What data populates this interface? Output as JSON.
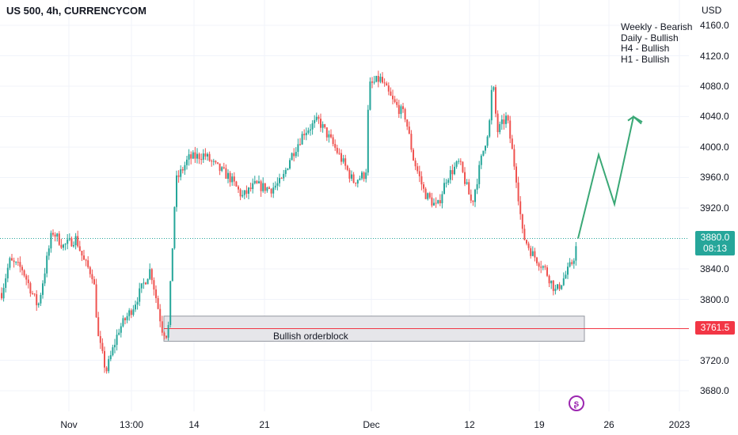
{
  "header": {
    "symbol_line": "US 500, 4h, CURRENCYCOM",
    "currency": "USD"
  },
  "notes": [
    "Weekly - Bearish",
    "Daily - Bullish",
    "H4 - Bullish",
    "H1 - Bullish"
  ],
  "annotations": {
    "orderblock_label": "Bullish orderblock"
  },
  "price_tags": {
    "current_price": "3880.0",
    "countdown": "08:13",
    "level_price": "3761.5"
  },
  "colors": {
    "up": "#26a69a",
    "down": "#ef5350",
    "level_line": "#f23645",
    "current_tag": "#26a69a",
    "orderblock_fill": "#e6e6ea",
    "orderblock_border": "#9598a1",
    "projection": "#3aa876",
    "grid": "#f0f3fa"
  },
  "chart_data": {
    "type": "candlestick",
    "y_axis": {
      "ticks": [
        "4160.0",
        "4120.0",
        "4080.0",
        "4040.0",
        "4000.0",
        "3960.0",
        "3920.0",
        "3840.0",
        "3800.0",
        "3720.0",
        "3680.0"
      ],
      "range": [
        3652,
        4180
      ]
    },
    "x_axis": {
      "ticks": [
        "Nov",
        "13:00",
        "14",
        "21",
        "Dec",
        "12",
        "19",
        "26",
        "2023"
      ]
    },
    "levels": {
      "current_price": 3880.0,
      "support": 3761.5
    },
    "orderblock": {
      "label": "Bullish orderblock",
      "low": 3745,
      "high": 3778
    },
    "projection_path": [
      3880,
      3990,
      3925,
      4040,
      4033
    ],
    "price_path_anchors": [
      [
        0,
        3800
      ],
      [
        12,
        3850
      ],
      [
        28,
        3840
      ],
      [
        48,
        3790
      ],
      [
        66,
        3890
      ],
      [
        80,
        3870
      ],
      [
        96,
        3880
      ],
      [
        106,
        3850
      ],
      [
        118,
        3830
      ],
      [
        124,
        3750
      ],
      [
        134,
        3705
      ],
      [
        150,
        3760
      ],
      [
        168,
        3790
      ],
      [
        190,
        3840
      ],
      [
        205,
        3760
      ],
      [
        212,
        3752
      ],
      [
        222,
        3955
      ],
      [
        238,
        3985
      ],
      [
        258,
        3990
      ],
      [
        272,
        3975
      ],
      [
        290,
        3960
      ],
      [
        306,
        3935
      ],
      [
        322,
        3950
      ],
      [
        342,
        3945
      ],
      [
        356,
        3955
      ],
      [
        366,
        3985
      ],
      [
        384,
        4020
      ],
      [
        402,
        4035
      ],
      [
        414,
        4015
      ],
      [
        428,
        3990
      ],
      [
        446,
        3955
      ],
      [
        462,
        3965
      ],
      [
        466,
        4080
      ],
      [
        480,
        4090
      ],
      [
        496,
        4060
      ],
      [
        512,
        4040
      ],
      [
        522,
        3985
      ],
      [
        536,
        3940
      ],
      [
        552,
        3920
      ],
      [
        564,
        3960
      ],
      [
        580,
        3980
      ],
      [
        596,
        3925
      ],
      [
        608,
        3985
      ],
      [
        618,
        4030
      ],
      [
        622,
        4090
      ],
      [
        628,
        4020
      ],
      [
        640,
        4040
      ],
      [
        652,
        3960
      ],
      [
        660,
        3885
      ],
      [
        672,
        3860
      ],
      [
        688,
        3840
      ],
      [
        702,
        3810
      ],
      [
        716,
        3835
      ],
      [
        724,
        3852
      ],
      [
        730,
        3880
      ]
    ]
  }
}
